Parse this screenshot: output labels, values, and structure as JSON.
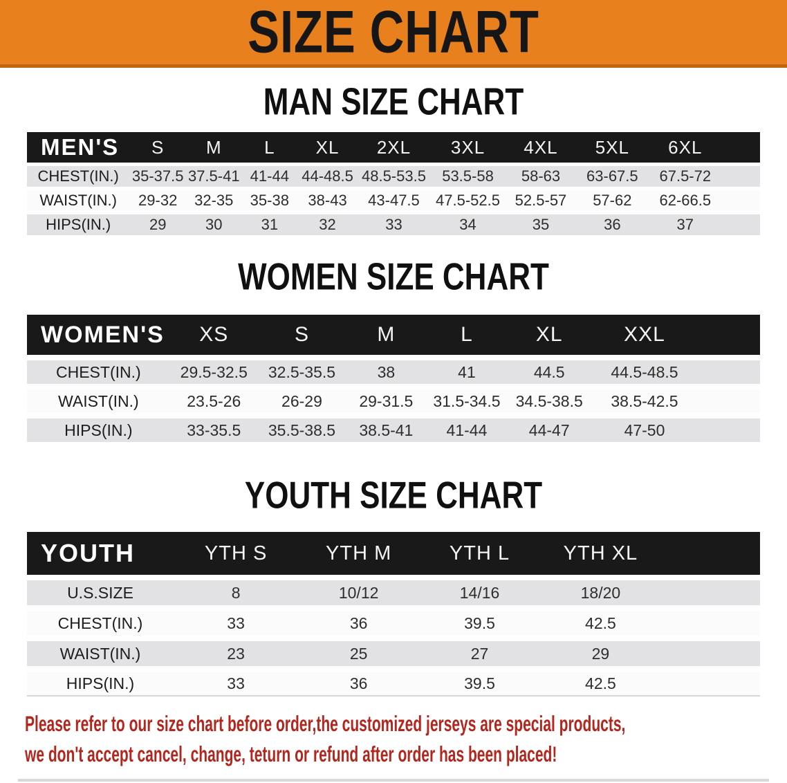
{
  "banner": {
    "title": "SIZE CHART"
  },
  "colors": {
    "banner_bg": "#e8811d",
    "banner_edge": "#c26411",
    "header_band": "#191919",
    "row_gray": "#e2e2e4",
    "row_white": "#fbfbfb",
    "note_red": "#b2261e"
  },
  "tables": [
    {
      "id": "men",
      "heading": "MAN SIZE CHART",
      "corner": "MEN'S",
      "columns": [
        "S",
        "M",
        "L",
        "XL",
        "2XL",
        "3XL",
        "4XL",
        "5XL",
        "6XL"
      ],
      "rows": [
        {
          "label": "CHEST(IN.)",
          "values": [
            "35-37.5",
            "37.5-41",
            "41-44",
            "44-48.5",
            "48.5-53.5",
            "53.5-58",
            "58-63",
            "63-67.5",
            "67.5-72"
          ]
        },
        {
          "label": "WAIST(IN.)",
          "values": [
            "29-32",
            "32-35",
            "35-38",
            "38-43",
            "43-47.5",
            "47.5-52.5",
            "52.5-57",
            "57-62",
            "62-66.5"
          ]
        },
        {
          "label": "HIPS(IN.)",
          "values": [
            "29",
            "30",
            "31",
            "32",
            "33",
            "34",
            "35",
            "36",
            "37"
          ]
        }
      ]
    },
    {
      "id": "women",
      "heading": "WOMEN SIZE CHART",
      "corner": "WOMEN'S",
      "columns": [
        "XS",
        "S",
        "M",
        "L",
        "XL",
        "XXL"
      ],
      "rows": [
        {
          "label": "CHEST(IN.)",
          "values": [
            "29.5-32.5",
            "32.5-35.5",
            "38",
            "41",
            "44.5",
            "44.5-48.5"
          ]
        },
        {
          "label": "WAIST(IN.)",
          "values": [
            "23.5-26",
            "26-29",
            "29-31.5",
            "31.5-34.5",
            "34.5-38.5",
            "38.5-42.5"
          ]
        },
        {
          "label": "HIPS(IN.)",
          "values": [
            "33-35.5",
            "35.5-38.5",
            "38.5-41",
            "41-44",
            "44-47",
            "47-50"
          ]
        }
      ]
    },
    {
      "id": "youth",
      "heading": "YOUTH SIZE CHART",
      "corner": "YOUTH",
      "columns": [
        "YTH S",
        "YTH M",
        "YTH L",
        "YTH XL"
      ],
      "rows": [
        {
          "label": "U.S.SIZE",
          "values": [
            "8",
            "10/12",
            "14/16",
            "18/20"
          ]
        },
        {
          "label": "CHEST(IN.)",
          "values": [
            "33",
            "36",
            "39.5",
            "42.5"
          ]
        },
        {
          "label": "WAIST(IN.)",
          "values": [
            "23",
            "25",
            "27",
            "29"
          ]
        },
        {
          "label": "HIPS(IN.)",
          "values": [
            "33",
            "36",
            "39.5",
            "42.5"
          ]
        }
      ]
    }
  ],
  "note": {
    "line1": "Please refer to our size chart before order,the customized jerseys are special products,",
    "line2": "we don't accept cancel, change, teturn or refund after order has been placed!"
  }
}
